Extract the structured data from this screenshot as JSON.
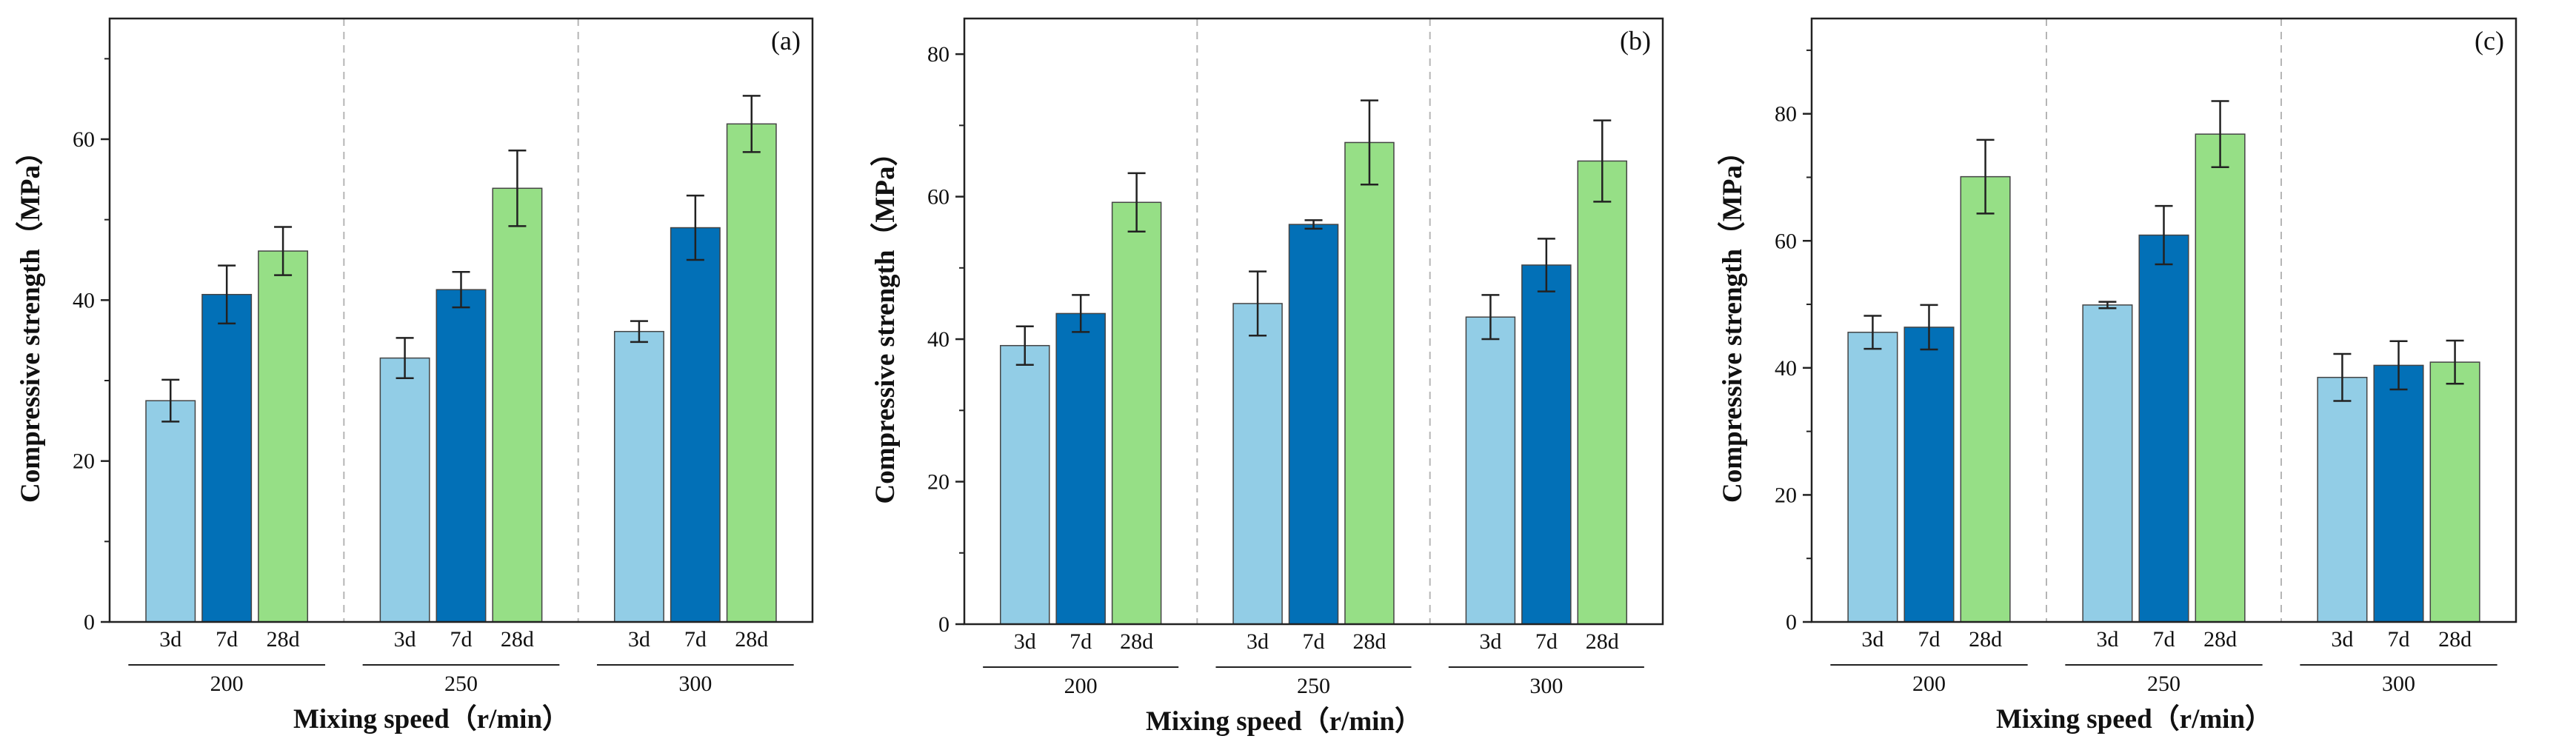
{
  "colors": {
    "3d": "#92cde6",
    "7d": "#0270b7",
    "28d": "#96df86",
    "edge": "#444444",
    "divider": "#b5b5b5"
  },
  "chart_data": [
    {
      "type": "bar",
      "panel_label": "(a)",
      "title": "",
      "xlabel": "Mixing speed（r/min）",
      "ylabel": "Compressive strength（MPa）",
      "ylim": [
        0,
        75
      ],
      "yticks": [
        0,
        20,
        40,
        60
      ],
      "groups": [
        "200",
        "250",
        "300"
      ],
      "categories": [
        "3d",
        "7d",
        "28d"
      ],
      "series": [
        {
          "name": "3d",
          "values": [
            27.5,
            32.8,
            36.1
          ],
          "errors": [
            2.6,
            2.5,
            1.3
          ]
        },
        {
          "name": "7d",
          "values": [
            40.7,
            41.3,
            49.0
          ],
          "errors": [
            3.6,
            2.2,
            4.0
          ]
        },
        {
          "name": "28d",
          "values": [
            46.1,
            53.9,
            61.9
          ],
          "errors": [
            3.0,
            4.7,
            3.5
          ]
        }
      ]
    },
    {
      "type": "bar",
      "panel_label": "(b)",
      "title": "",
      "xlabel": "Mixing speed（r/min）",
      "ylabel": "Compressive strength（MPa）",
      "ylim": [
        0,
        85
      ],
      "yticks": [
        0,
        20,
        40,
        60,
        80
      ],
      "groups": [
        "200",
        "250",
        "300"
      ],
      "categories": [
        "3d",
        "7d",
        "28d"
      ],
      "series": [
        {
          "name": "3d",
          "values": [
            39.1,
            45.0,
            43.1
          ],
          "errors": [
            2.7,
            4.5,
            3.1
          ]
        },
        {
          "name": "7d",
          "values": [
            43.6,
            56.1,
            50.4
          ],
          "errors": [
            2.6,
            0.6,
            3.7
          ]
        },
        {
          "name": "28d",
          "values": [
            59.2,
            67.6,
            65.0
          ],
          "errors": [
            4.1,
            5.9,
            5.7
          ]
        }
      ]
    },
    {
      "type": "bar",
      "panel_label": "(c)",
      "title": "",
      "xlabel": "Mixing speed（r/min）",
      "ylabel": "Compressive strength（MPa）",
      "ylim": [
        0,
        95
      ],
      "yticks": [
        0,
        20,
        40,
        60,
        80
      ],
      "groups": [
        "200",
        "250",
        "300"
      ],
      "categories": [
        "3d",
        "7d",
        "28d"
      ],
      "series": [
        {
          "name": "3d",
          "values": [
            45.6,
            49.9,
            38.5
          ],
          "errors": [
            2.6,
            0.5,
            3.7
          ]
        },
        {
          "name": "7d",
          "values": [
            46.4,
            60.9,
            40.4
          ],
          "errors": [
            3.5,
            4.6,
            3.8
          ]
        },
        {
          "name": "28d",
          "values": [
            70.1,
            76.8,
            40.9
          ],
          "errors": [
            5.8,
            5.2,
            3.4
          ]
        }
      ]
    }
  ]
}
